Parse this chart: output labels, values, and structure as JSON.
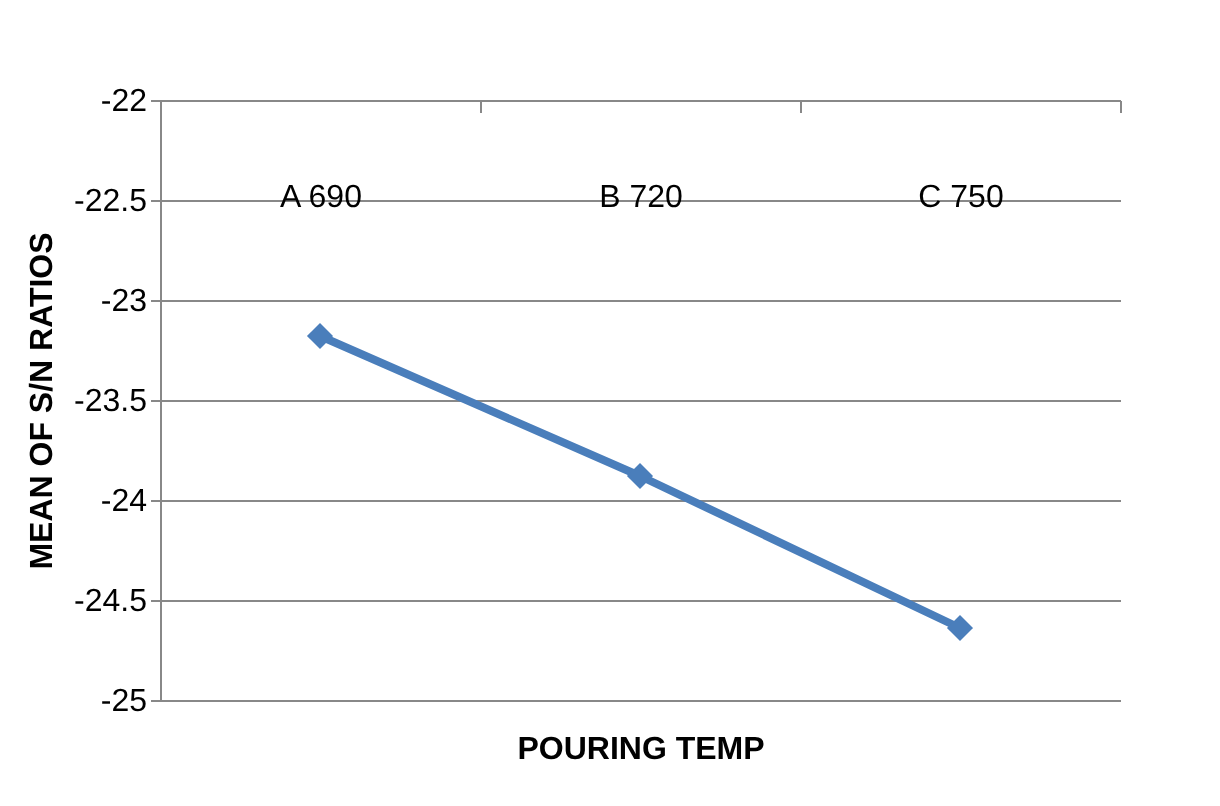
{
  "chart_data": {
    "type": "line",
    "xlabel": "POURING TEMP",
    "ylabel": "MEAN OF S/N RATIOS",
    "categories": [
      "A 690",
      "B 720",
      "C 750"
    ],
    "series": [
      {
        "color": "#4a7ebb",
        "values": [
          -23.18,
          -23.88,
          -24.64
        ]
      }
    ],
    "ylim": [
      -25,
      -22
    ],
    "yticks": [
      -25,
      -24.5,
      -24,
      -23.5,
      -23,
      -22.5,
      -22
    ],
    "grid": "y",
    "marker": "diamond",
    "line_style": "solid",
    "legend": false
  }
}
